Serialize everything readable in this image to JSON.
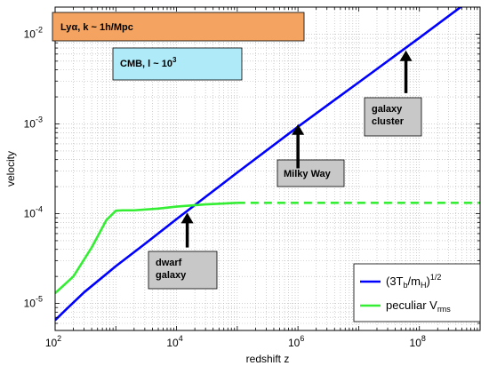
{
  "chart_data": {
    "type": "line",
    "xlabel": "redshift z",
    "ylabel": "velocity",
    "x_scale": "log",
    "y_scale": "log",
    "xlim": [
      100,
      1000000000
    ],
    "ylim": [
      5e-06,
      0.02
    ],
    "grid": true,
    "x_ticks": [
      {
        "value": 100,
        "base": "10",
        "exp": "2"
      },
      {
        "value": 10000,
        "base": "10",
        "exp": "4"
      },
      {
        "value": 1000000,
        "base": "10",
        "exp": "6"
      },
      {
        "value": 100000000,
        "base": "10",
        "exp": "8"
      }
    ],
    "y_ticks": [
      {
        "value": 1e-05,
        "base": "10",
        "exp": "-5"
      },
      {
        "value": 0.0001,
        "base": "10",
        "exp": "-4"
      },
      {
        "value": 0.001,
        "base": "10",
        "exp": "-3"
      },
      {
        "value": 0.01,
        "base": "10",
        "exp": "-2"
      }
    ],
    "series": [
      {
        "label_pre": "(3T",
        "label_sub1": "b",
        "label_mid": "/m",
        "label_sub2": "H",
        "label_post": ")",
        "label_sup": "1/2",
        "color": "#0000ff",
        "style": "solid",
        "x": [
          100,
          150,
          300,
          1000,
          3000,
          10000,
          100000,
          1000000,
          10000000,
          100000000,
          1000000000
        ],
        "y": [
          6.5e-06,
          8.5e-06,
          1.33e-05,
          2.6e-05,
          4.6e-05,
          8.7e-05,
          0.000287,
          0.00093,
          0.0029,
          0.0091,
          0.029
        ]
      },
      {
        "label_pre": "peculiar V",
        "label_sub1": "rms",
        "color": "#33ee33",
        "style": "solid",
        "x": [
          100,
          200,
          400,
          700,
          1000,
          1300,
          2000,
          5000,
          10000,
          30000,
          100000
        ],
        "y": [
          1.3e-05,
          2e-05,
          4.2e-05,
          8.5e-05,
          0.000108,
          0.000109,
          0.000109,
          0.000114,
          0.00012,
          0.000127,
          0.000132
        ]
      },
      {
        "color": "#33ee33",
        "style": "dashed",
        "x": [
          100000,
          1000000,
          10000000,
          100000000,
          1000000000
        ],
        "y": [
          0.000132,
          0.000132,
          0.000132,
          0.000132,
          0.000132
        ]
      }
    ],
    "annotations": [
      {
        "lines": [
          "Milky Way"
        ],
        "arrow_x": 1000000,
        "arrow_y_from": 0.00032,
        "arrow_y_to": 0.00095
      },
      {
        "lines": [
          "galaxy",
          "cluster"
        ],
        "arrow_x": 60000000,
        "arrow_y_from": 0.0022,
        "arrow_y_to": 0.0063
      },
      {
        "lines": [
          "dwarf",
          "galaxy"
        ],
        "arrow_x": 15000,
        "arrow_y_from": 4.2e-05,
        "arrow_y_to": 9.8e-05
      }
    ],
    "scale_boxes": [
      {
        "label_pre": "Ly",
        "label_greek": "α",
        "label_post": ",   k ~ 1h/Mpc",
        "color": "#f4a460"
      },
      {
        "label_pre": "CMB,  l ~ 10",
        "label_sup": "3",
        "color": "#aeeaf8"
      }
    ],
    "legend_position": "bottom-right"
  }
}
